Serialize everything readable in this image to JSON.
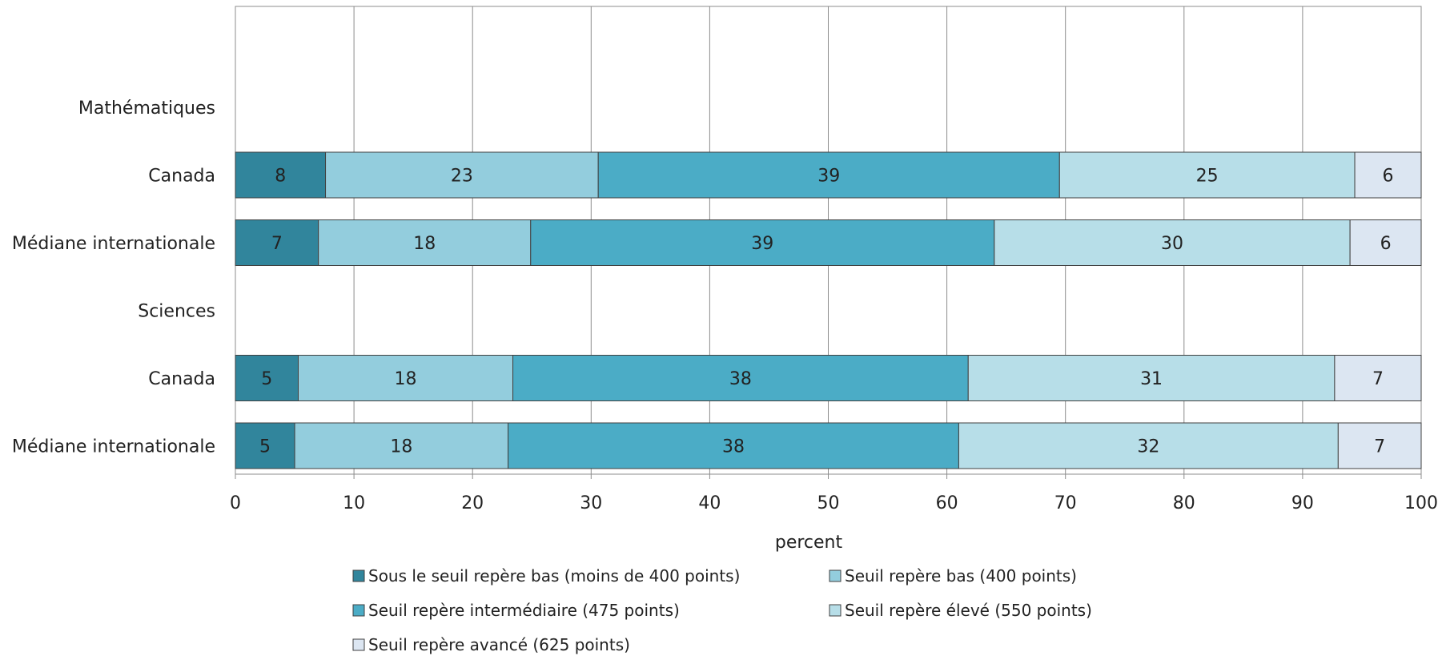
{
  "chart_data": {
    "type": "bar",
    "orientation": "horizontal",
    "stacked": true,
    "xlabel": "percent",
    "xlim": [
      0,
      100
    ],
    "xticks": [
      "0",
      "10",
      "20",
      "30",
      "40",
      "50",
      "60",
      "70",
      "80",
      "90",
      "100"
    ],
    "grid": "vertical",
    "legend_position": "bottom",
    "categories": [
      {
        "label": "Mathématiques",
        "group_header": true
      },
      {
        "label": "Canada",
        "group_header": false
      },
      {
        "label": "Médiane internationale",
        "group_header": false
      },
      {
        "label": "Sciences",
        "group_header": true
      },
      {
        "label": "Canada",
        "group_header": false
      },
      {
        "label": "Médiane internationale",
        "group_header": false
      }
    ],
    "series": [
      {
        "name": "Sous le seuil repère bas (moins de 400 points)",
        "color": "#31859c",
        "values": [
          null,
          7.6,
          7.0,
          null,
          5.3,
          5.0
        ],
        "labels": [
          "",
          "8",
          "7",
          "",
          "5",
          "5"
        ]
      },
      {
        "name": "Seuil repère bas (400 points)",
        "color": "#93cddd",
        "values": [
          null,
          23.0,
          17.9,
          null,
          18.1,
          18.0
        ],
        "labels": [
          "",
          "23",
          "18",
          "",
          "18",
          "18"
        ]
      },
      {
        "name": "Seuil repère intermédiaire (475 points)",
        "color": "#4bacc6",
        "values": [
          null,
          38.9,
          39.1,
          null,
          38.4,
          38.0
        ],
        "labels": [
          "",
          "39",
          "39",
          "",
          "38",
          "38"
        ]
      },
      {
        "name": "Seuil repère élevé (550 points)",
        "color": "#b7dee8",
        "values": [
          null,
          24.9,
          30.0,
          null,
          30.9,
          32.0
        ],
        "labels": [
          "",
          "25",
          "30",
          "",
          "31",
          "32"
        ]
      },
      {
        "name": "Seuil repère avancé (625 points)",
        "color": "#dce6f2",
        "values": [
          null,
          5.6,
          6.0,
          null,
          7.3,
          7.0
        ],
        "labels": [
          "",
          "6",
          "6",
          "",
          "7",
          "7"
        ]
      }
    ]
  }
}
